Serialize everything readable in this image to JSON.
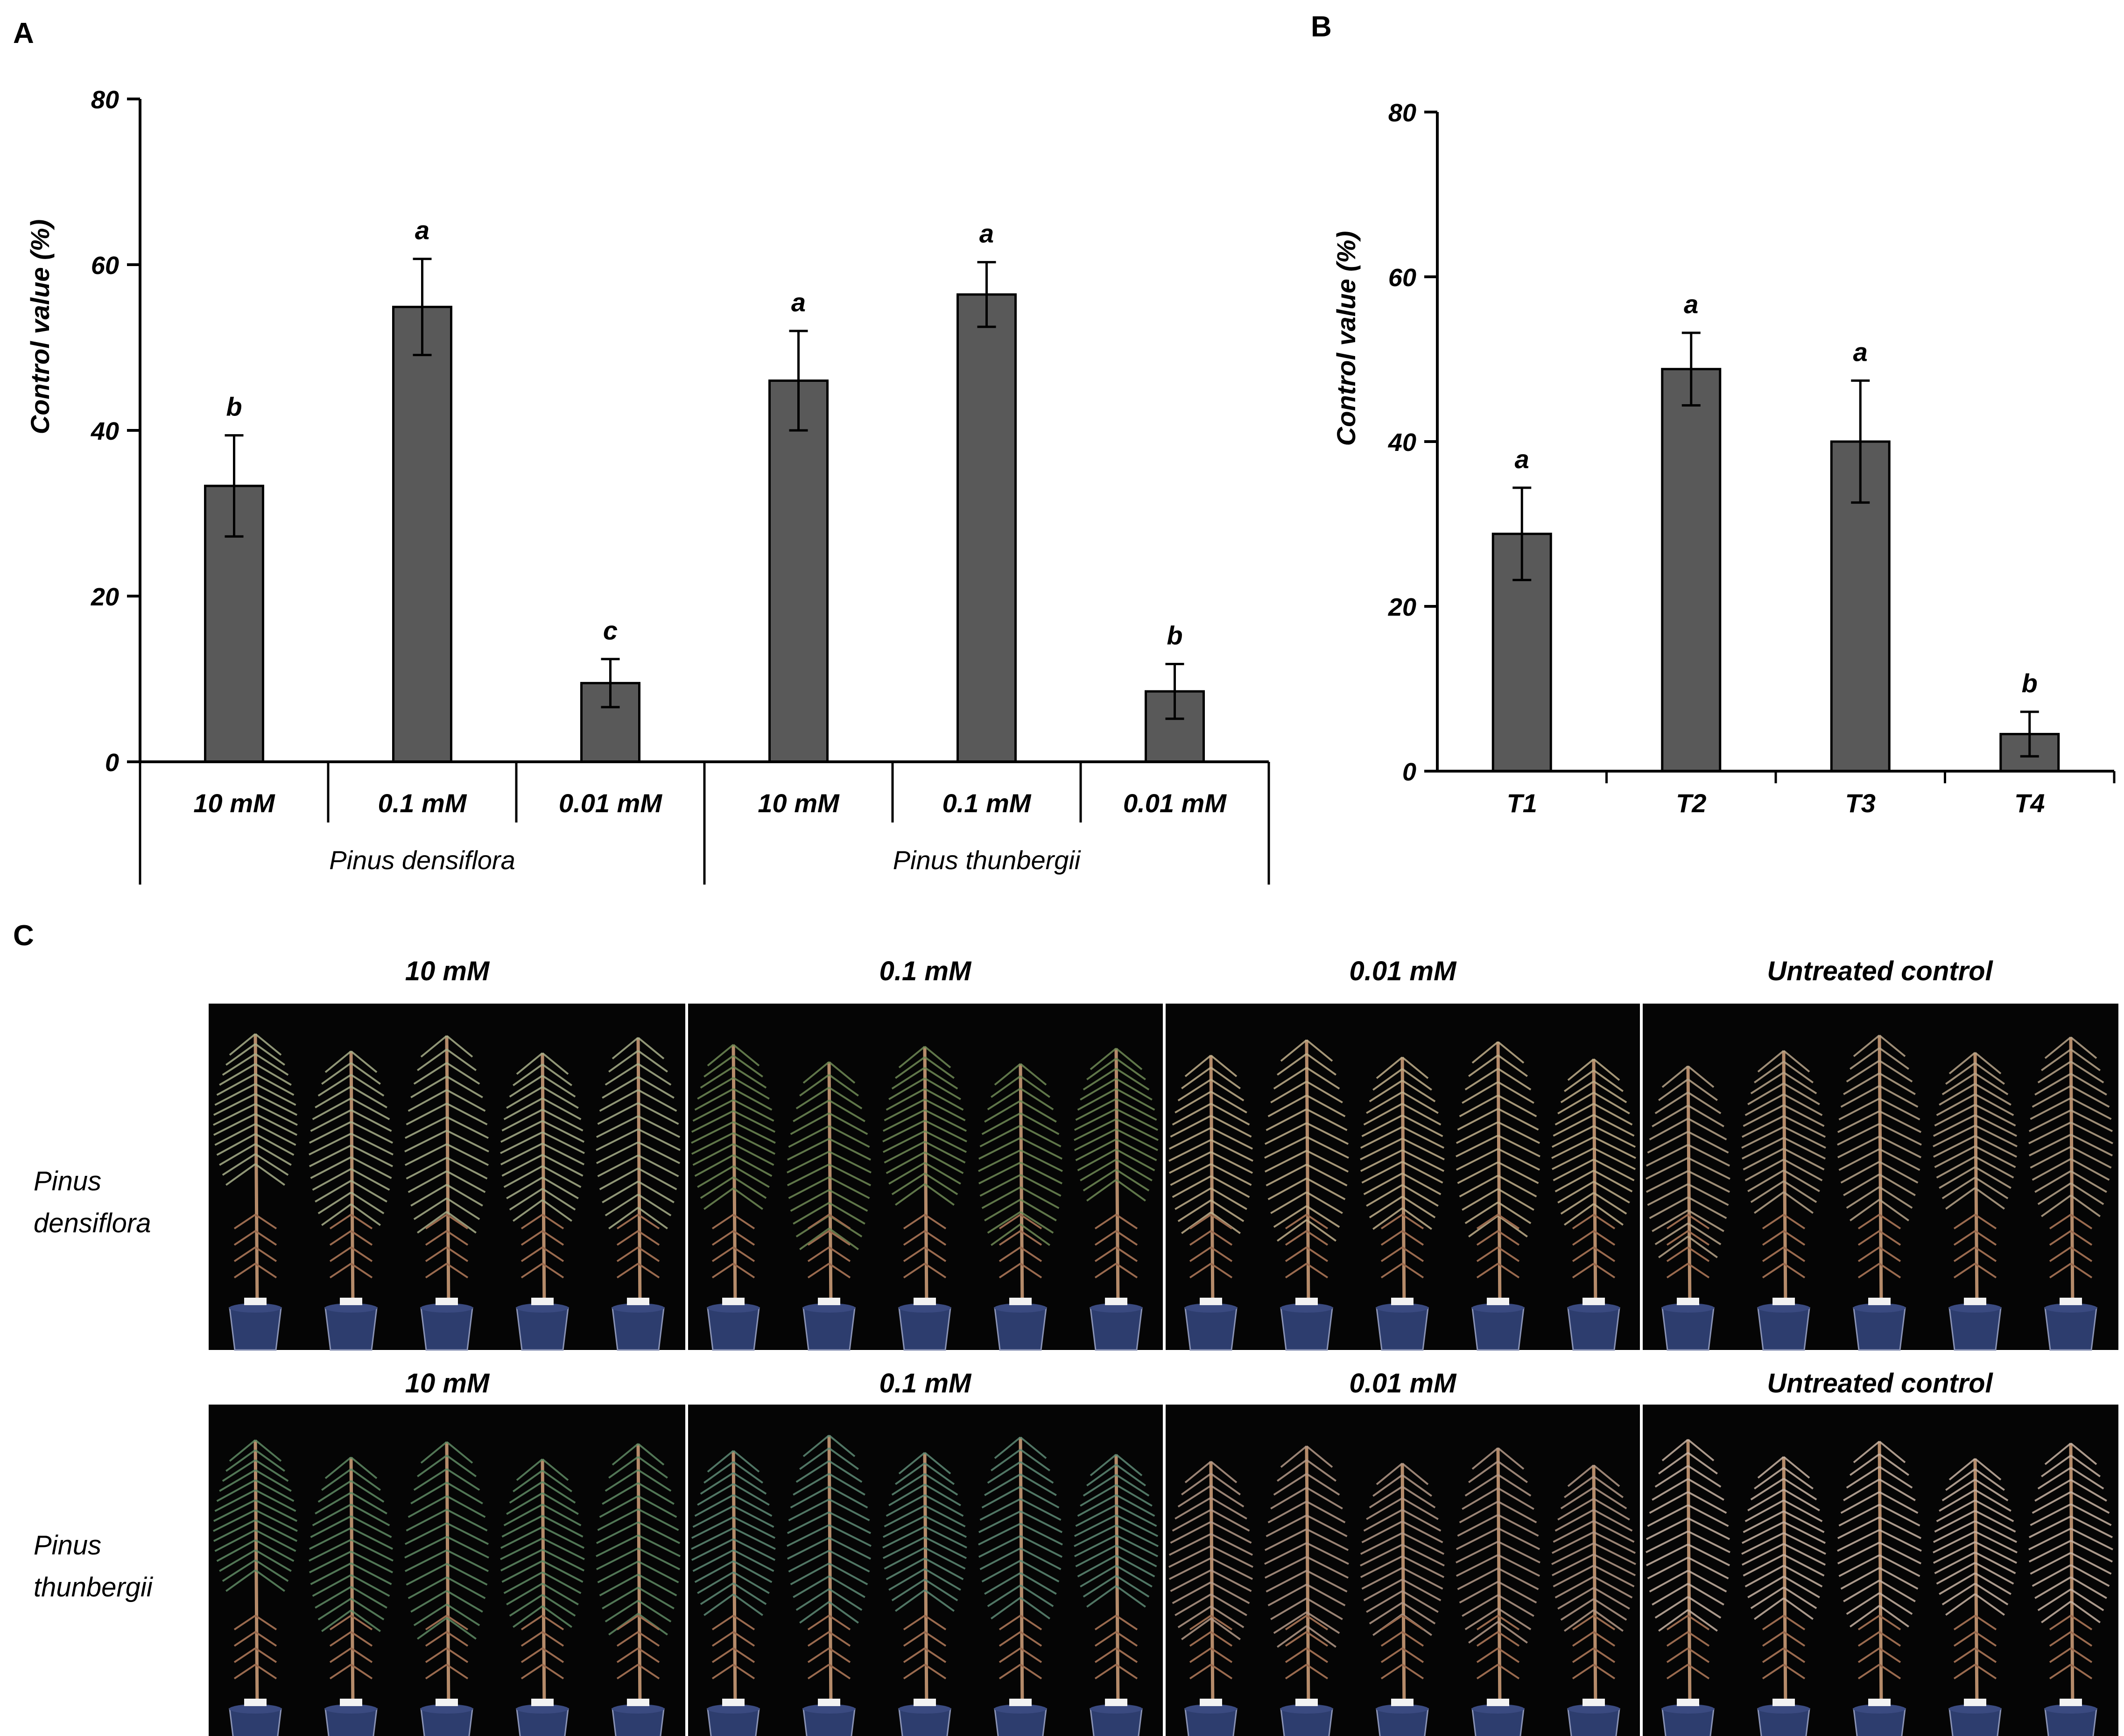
{
  "panels": {
    "A": "A",
    "B": "B",
    "C": "C"
  },
  "colors": {
    "bar": "#595959",
    "bar_stroke": "#000000",
    "axis": "#000000",
    "photo_bg": "#050505",
    "photo_divider": "#ffffff"
  },
  "chart_data": [
    {
      "panel": "A",
      "type": "bar",
      "ylabel": "Control value (%)",
      "ylim": [
        0,
        80
      ],
      "yticks": [
        0,
        20,
        40,
        60,
        80
      ],
      "categories": [
        "10 mM",
        "0.1 mM",
        "0.01 mM",
        "10 mM",
        "0.1 mM",
        "0.01 mM"
      ],
      "groups": [
        {
          "label": "Pinus densiflora",
          "categories": [
            0,
            1,
            2
          ]
        },
        {
          "label": "Pinus thunbergii",
          "categories": [
            3,
            4,
            5
          ]
        }
      ],
      "values": [
        33.3,
        54.9,
        9.5,
        46.0,
        56.4,
        8.5
      ],
      "errors": [
        6.1,
        5.8,
        2.9,
        6.0,
        3.9,
        3.3
      ],
      "letters": [
        "b",
        "a",
        "c",
        "a",
        "a",
        "b"
      ],
      "grid": false
    },
    {
      "panel": "B",
      "type": "bar",
      "ylabel": "Control value (%)",
      "ylim": [
        0,
        80
      ],
      "yticks": [
        0,
        20,
        40,
        60,
        80
      ],
      "categories": [
        "T1",
        "T2",
        "T3",
        "T4"
      ],
      "values": [
        28.8,
        48.8,
        40.0,
        4.5
      ],
      "errors": [
        5.6,
        4.4,
        7.4,
        2.7
      ],
      "letters": [
        "a",
        "a",
        "a",
        "b"
      ],
      "grid": false
    }
  ],
  "photo_panel": {
    "rows": [
      {
        "species": [
          "Pinus",
          "densiflora"
        ],
        "column_titles": [
          "10 mM",
          "0.1 mM",
          "0.01 mM",
          "Untreated control"
        ]
      },
      {
        "species": [
          "Pinus",
          "thunbergii"
        ],
        "column_titles": [
          "10 mM",
          "0.1 mM",
          "0.01 mM",
          "Untreated control"
        ]
      }
    ]
  }
}
